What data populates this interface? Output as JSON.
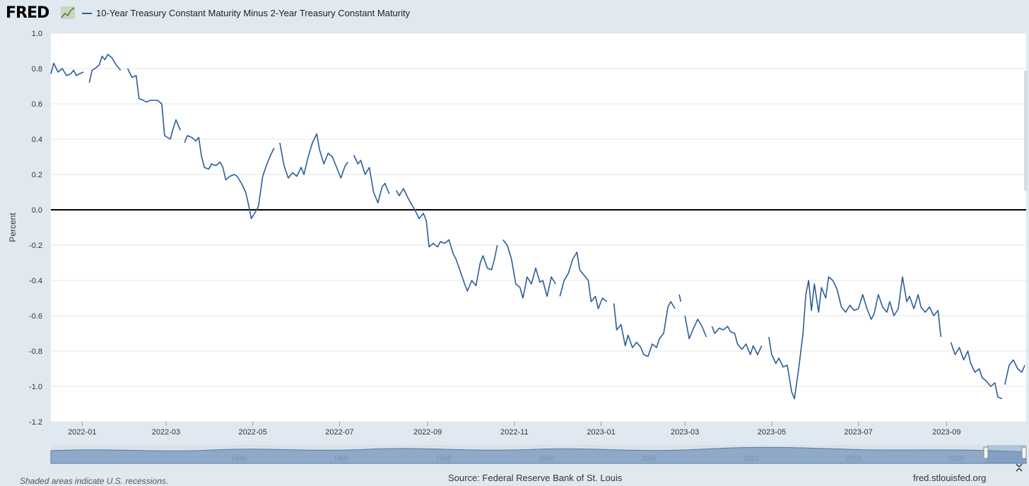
{
  "header": {
    "logo_text": "FRED",
    "logo_icon": "line-chart-icon",
    "legend_label": "10-Year Treasury Constant Maturity Minus 2-Year Treasury Constant Maturity"
  },
  "footer": {
    "recession_note": "Shaded areas indicate U.S. recessions.",
    "source": "Source: Federal Reserve Bank of St. Louis",
    "site": "fred.stlouisfed.org"
  },
  "colors": {
    "series": "#2b5d97",
    "zero_line": "#000000",
    "background": "#e1e9f0",
    "plot": "#ffffff"
  },
  "navigator": {
    "year_labels": [
      "1985",
      "1990",
      "1995",
      "2000",
      "2005",
      "2010",
      "2015",
      "2020"
    ]
  },
  "chart_data": {
    "type": "line",
    "title": "",
    "xlabel": "",
    "ylabel": "Percent",
    "ylim": [
      -1.2,
      1.0
    ],
    "xlim": [
      "2021-12-10",
      "2023-10-27"
    ],
    "y_ticks": [
      "1.0",
      "0.8",
      "0.6",
      "0.4",
      "0.2",
      "0.0",
      "-0.2",
      "-0.4",
      "-0.6",
      "-0.8",
      "-1.0",
      "-1.2"
    ],
    "x_ticks": [
      "2022-01",
      "2022-03",
      "2022-05",
      "2022-07",
      "2022-09",
      "2022-11",
      "2023-01",
      "2023-03",
      "2023-05",
      "2023-07",
      "2023-09"
    ],
    "grid": true,
    "series": [
      {
        "name": "10-Year Treasury Constant Maturity Minus 2-Year Treasury Constant Maturity",
        "points": [
          [
            "2021-12-10",
            0.77
          ],
          [
            "2021-12-12",
            0.83
          ],
          [
            "2021-12-15",
            0.78
          ],
          [
            "2021-12-18",
            0.8
          ],
          [
            "2021-12-21",
            0.76
          ],
          [
            "2021-12-24",
            0.77
          ],
          [
            "2021-12-26",
            0.79
          ],
          [
            "2021-12-28",
            0.76
          ],
          [
            "2021-12-30",
            0.77
          ],
          [
            "2022-01-02",
            0.78
          ],
          null,
          [
            "2022-01-06",
            0.72
          ],
          [
            "2022-01-08",
            0.79
          ],
          [
            "2022-01-10",
            0.8
          ],
          [
            "2022-01-13",
            0.82
          ],
          [
            "2022-01-15",
            0.87
          ],
          [
            "2022-01-17",
            0.85
          ],
          [
            "2022-01-19",
            0.88
          ],
          [
            "2022-01-22",
            0.86
          ],
          [
            "2022-01-25",
            0.82
          ],
          [
            "2022-01-28",
            0.79
          ],
          null,
          [
            "2022-02-02",
            0.8
          ],
          [
            "2022-02-05",
            0.75
          ],
          [
            "2022-02-08",
            0.76
          ],
          [
            "2022-02-10",
            0.63
          ],
          [
            "2022-02-13",
            0.62
          ],
          [
            "2022-02-15",
            0.61
          ],
          [
            "2022-02-18",
            0.62
          ],
          [
            "2022-02-21",
            0.62
          ],
          [
            "2022-02-23",
            0.62
          ],
          [
            "2022-02-26",
            0.6
          ],
          [
            "2022-02-28",
            0.42
          ],
          [
            "2022-03-02",
            0.41
          ],
          [
            "2022-03-04",
            0.4
          ],
          [
            "2022-03-06",
            0.46
          ],
          [
            "2022-03-08",
            0.51
          ],
          [
            "2022-03-11",
            0.45
          ],
          null,
          [
            "2022-03-14",
            0.38
          ],
          [
            "2022-03-16",
            0.42
          ],
          [
            "2022-03-19",
            0.41
          ],
          [
            "2022-03-22",
            0.39
          ],
          [
            "2022-03-24",
            0.41
          ],
          [
            "2022-03-26",
            0.3
          ],
          [
            "2022-03-28",
            0.24
          ],
          [
            "2022-03-31",
            0.23
          ],
          [
            "2022-04-02",
            0.26
          ],
          [
            "2022-04-05",
            0.25
          ],
          [
            "2022-04-08",
            0.27
          ],
          [
            "2022-04-10",
            0.24
          ],
          [
            "2022-04-12",
            0.17
          ],
          [
            "2022-04-15",
            0.19
          ],
          [
            "2022-04-18",
            0.2
          ],
          [
            "2022-04-20",
            0.19
          ],
          [
            "2022-04-23",
            0.15
          ],
          [
            "2022-04-26",
            0.1
          ],
          [
            "2022-04-28",
            0.03
          ],
          [
            "2022-04-30",
            -0.05
          ],
          [
            "2022-05-03",
            -0.01
          ],
          [
            "2022-05-05",
            0.02
          ],
          [
            "2022-05-08",
            0.19
          ],
          [
            "2022-05-11",
            0.26
          ],
          [
            "2022-05-13",
            0.3
          ],
          [
            "2022-05-16",
            0.35
          ],
          null,
          [
            "2022-05-20",
            0.38
          ],
          [
            "2022-05-23",
            0.25
          ],
          [
            "2022-05-26",
            0.18
          ],
          [
            "2022-05-29",
            0.21
          ],
          [
            "2022-06-01",
            0.19
          ],
          [
            "2022-06-04",
            0.24
          ],
          [
            "2022-06-06",
            0.2
          ],
          [
            "2022-06-09",
            0.3
          ],
          [
            "2022-06-12",
            0.38
          ],
          [
            "2022-06-15",
            0.43
          ],
          [
            "2022-06-17",
            0.34
          ],
          [
            "2022-06-20",
            0.26
          ],
          [
            "2022-06-23",
            0.32
          ],
          [
            "2022-06-26",
            0.3
          ],
          [
            "2022-06-29",
            0.24
          ],
          [
            "2022-07-02",
            0.18
          ],
          [
            "2022-07-05",
            0.25
          ],
          [
            "2022-07-07",
            0.27
          ],
          null,
          [
            "2022-07-11",
            0.31
          ],
          [
            "2022-07-14",
            0.26
          ],
          [
            "2022-07-16",
            0.28
          ],
          [
            "2022-07-19",
            0.2
          ],
          [
            "2022-07-22",
            0.24
          ],
          [
            "2022-07-25",
            0.1
          ],
          [
            "2022-07-28",
            0.04
          ],
          [
            "2022-07-31",
            0.13
          ],
          [
            "2022-08-02",
            0.15
          ],
          [
            "2022-08-05",
            0.09
          ],
          null,
          [
            "2022-08-10",
            0.11
          ],
          [
            "2022-08-12",
            0.08
          ],
          [
            "2022-08-15",
            0.12
          ],
          [
            "2022-08-18",
            0.07
          ],
          [
            "2022-08-20",
            0.04
          ],
          [
            "2022-08-23",
            0.0
          ],
          [
            "2022-08-26",
            -0.05
          ],
          [
            "2022-08-29",
            -0.02
          ],
          [
            "2022-08-31",
            -0.06
          ],
          [
            "2022-09-02",
            -0.21
          ],
          [
            "2022-09-05",
            -0.19
          ],
          [
            "2022-09-08",
            -0.21
          ],
          [
            "2022-09-10",
            -0.18
          ],
          [
            "2022-09-13",
            -0.19
          ],
          [
            "2022-09-16",
            -0.17
          ],
          [
            "2022-09-19",
            -0.25
          ],
          [
            "2022-09-21",
            -0.28
          ],
          [
            "2022-09-24",
            -0.35
          ],
          [
            "2022-09-27",
            -0.42
          ],
          [
            "2022-09-29",
            -0.46
          ],
          [
            "2022-10-02",
            -0.4
          ],
          [
            "2022-10-05",
            -0.43
          ],
          [
            "2022-10-08",
            -0.3
          ],
          [
            "2022-10-10",
            -0.26
          ],
          [
            "2022-10-13",
            -0.33
          ],
          [
            "2022-10-16",
            -0.34
          ],
          [
            "2022-10-18",
            -0.28
          ],
          [
            "2022-10-20",
            -0.2
          ],
          null,
          [
            "2022-10-24",
            -0.17
          ],
          [
            "2022-10-27",
            -0.2
          ],
          [
            "2022-10-30",
            -0.28
          ],
          [
            "2022-11-02",
            -0.42
          ],
          [
            "2022-11-05",
            -0.44
          ],
          [
            "2022-11-07",
            -0.5
          ],
          [
            "2022-11-10",
            -0.38
          ],
          [
            "2022-11-13",
            -0.42
          ],
          [
            "2022-11-16",
            -0.33
          ],
          [
            "2022-11-19",
            -0.41
          ],
          [
            "2022-11-21",
            -0.4
          ],
          [
            "2022-11-24",
            -0.49
          ],
          [
            "2022-11-27",
            -0.38
          ],
          [
            "2022-11-30",
            -0.42
          ],
          null,
          [
            "2022-12-03",
            -0.49
          ],
          [
            "2022-12-06",
            -0.4
          ],
          [
            "2022-12-09",
            -0.36
          ],
          [
            "2022-12-12",
            -0.28
          ],
          [
            "2022-12-15",
            -0.24
          ],
          [
            "2022-12-17",
            -0.34
          ],
          [
            "2022-12-20",
            -0.37
          ],
          [
            "2022-12-23",
            -0.4
          ],
          [
            "2022-12-25",
            -0.52
          ],
          [
            "2022-12-28",
            -0.49
          ],
          [
            "2022-12-30",
            -0.56
          ],
          [
            "2023-01-02",
            -0.5
          ],
          [
            "2023-01-05",
            -0.52
          ],
          null,
          [
            "2023-01-10",
            -0.53
          ],
          [
            "2023-01-12",
            -0.68
          ],
          [
            "2023-01-15",
            -0.65
          ],
          [
            "2023-01-18",
            -0.77
          ],
          [
            "2023-01-20",
            -0.71
          ],
          [
            "2023-01-23",
            -0.78
          ],
          [
            "2023-01-26",
            -0.75
          ],
          [
            "2023-01-29",
            -0.78
          ],
          [
            "2023-01-31",
            -0.82
          ],
          [
            "2023-02-03",
            -0.83
          ],
          [
            "2023-02-06",
            -0.76
          ],
          [
            "2023-02-09",
            -0.78
          ],
          [
            "2023-02-11",
            -0.73
          ],
          [
            "2023-02-14",
            -0.7
          ],
          [
            "2023-02-17",
            -0.55
          ],
          [
            "2023-02-19",
            -0.52
          ],
          [
            "2023-02-22",
            -0.56
          ],
          null,
          [
            "2023-02-25",
            -0.48
          ],
          [
            "2023-02-26",
            -0.52
          ],
          null,
          [
            "2023-03-01",
            -0.6
          ],
          [
            "2023-03-04",
            -0.73
          ],
          [
            "2023-03-07",
            -0.67
          ],
          [
            "2023-03-10",
            -0.62
          ],
          [
            "2023-03-13",
            -0.66
          ],
          [
            "2023-03-16",
            -0.72
          ],
          null,
          [
            "2023-03-20",
            -0.66
          ],
          [
            "2023-03-22",
            -0.7
          ],
          [
            "2023-03-25",
            -0.67
          ],
          [
            "2023-03-28",
            -0.68
          ],
          [
            "2023-03-31",
            -0.66
          ],
          [
            "2023-04-02",
            -0.69
          ],
          [
            "2023-04-05",
            -0.7
          ],
          [
            "2023-04-07",
            -0.76
          ],
          [
            "2023-04-10",
            -0.79
          ],
          [
            "2023-04-13",
            -0.76
          ],
          [
            "2023-04-16",
            -0.82
          ],
          [
            "2023-04-18",
            -0.77
          ],
          [
            "2023-04-21",
            -0.82
          ],
          [
            "2023-04-24",
            -0.77
          ],
          null,
          [
            "2023-04-29",
            -0.72
          ],
          [
            "2023-05-01",
            -0.82
          ],
          [
            "2023-05-04",
            -0.87
          ],
          [
            "2023-05-06",
            -0.84
          ],
          [
            "2023-05-09",
            -0.89
          ],
          [
            "2023-05-12",
            -0.88
          ],
          [
            "2023-05-15",
            -1.03
          ],
          [
            "2023-05-17",
            -1.07
          ],
          [
            "2023-05-20",
            -0.9
          ],
          [
            "2023-05-23",
            -0.7
          ],
          [
            "2023-05-25",
            -0.48
          ],
          [
            "2023-05-27",
            -0.4
          ],
          [
            "2023-05-29",
            -0.57
          ],
          [
            "2023-05-31",
            -0.42
          ],
          [
            "2023-06-03",
            -0.58
          ],
          [
            "2023-06-05",
            -0.44
          ],
          [
            "2023-06-08",
            -0.5
          ],
          [
            "2023-06-10",
            -0.38
          ],
          [
            "2023-06-13",
            -0.4
          ],
          [
            "2023-06-16",
            -0.45
          ],
          [
            "2023-06-19",
            -0.55
          ],
          [
            "2023-06-22",
            -0.58
          ],
          [
            "2023-06-25",
            -0.54
          ],
          [
            "2023-06-28",
            -0.57
          ],
          [
            "2023-07-01",
            -0.56
          ],
          [
            "2023-07-04",
            -0.48
          ],
          [
            "2023-07-07",
            -0.56
          ],
          [
            "2023-07-10",
            -0.62
          ],
          [
            "2023-07-12",
            -0.59
          ],
          [
            "2023-07-15",
            -0.48
          ],
          [
            "2023-07-18",
            -0.55
          ],
          [
            "2023-07-21",
            -0.58
          ],
          [
            "2023-07-23",
            -0.52
          ],
          [
            "2023-07-26",
            -0.6
          ],
          [
            "2023-07-29",
            -0.56
          ],
          [
            "2023-08-01",
            -0.38
          ],
          [
            "2023-08-04",
            -0.52
          ],
          [
            "2023-08-06",
            -0.49
          ],
          [
            "2023-08-09",
            -0.56
          ],
          [
            "2023-08-12",
            -0.48
          ],
          [
            "2023-08-14",
            -0.55
          ],
          [
            "2023-08-17",
            -0.58
          ],
          [
            "2023-08-20",
            -0.55
          ],
          [
            "2023-08-23",
            -0.6
          ],
          [
            "2023-08-26",
            -0.57
          ],
          [
            "2023-08-28",
            -0.72
          ],
          null,
          [
            "2023-09-04",
            -0.75
          ],
          [
            "2023-09-07",
            -0.82
          ],
          [
            "2023-09-10",
            -0.78
          ],
          [
            "2023-09-13",
            -0.85
          ],
          [
            "2023-09-16",
            -0.8
          ],
          [
            "2023-09-18",
            -0.87
          ],
          [
            "2023-09-21",
            -0.92
          ],
          [
            "2023-09-24",
            -0.9
          ],
          [
            "2023-09-26",
            -0.95
          ],
          [
            "2023-09-29",
            -0.97
          ],
          [
            "2023-10-02",
            -1.0
          ],
          [
            "2023-10-05",
            -0.98
          ],
          [
            "2023-10-07",
            -1.06
          ],
          [
            "2023-10-10",
            -1.07
          ],
          null,
          [
            "2023-10-12",
            -0.99
          ],
          [
            "2023-10-15",
            -0.88
          ],
          [
            "2023-10-18",
            -0.85
          ],
          [
            "2023-10-21",
            -0.9
          ],
          [
            "2023-10-24",
            -0.92
          ],
          [
            "2023-10-26",
            -0.88
          ]
        ]
      }
    ]
  }
}
